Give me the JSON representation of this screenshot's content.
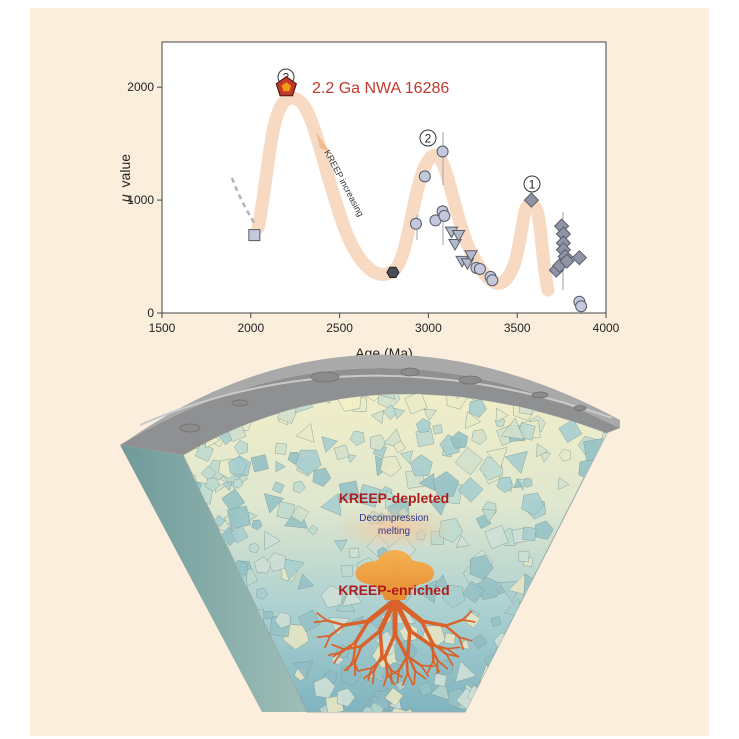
{
  "chart_data": {
    "type": "scatter",
    "xlabel": "Age (Ma)",
    "ylabel_symbol": "μ",
    "ylabel_text": "value",
    "xlim": [
      1500,
      4000
    ],
    "ylim": [
      0,
      2400
    ],
    "xticks": [
      1500,
      2000,
      2500,
      3000,
      3500,
      4000
    ],
    "yticks": [
      0,
      1000,
      2000
    ],
    "grid": false,
    "annotations": {
      "highlight_label": "2.2 Ga NWA 16286",
      "trend_label": "KREEP increasing",
      "stage_labels": [
        "1",
        "2",
        "3"
      ]
    },
    "series": [
      {
        "marker": "pentagon",
        "color": "#c0392b",
        "points": [
          {
            "x": 2200,
            "y": 2000
          }
        ]
      },
      {
        "marker": "square",
        "color": "#c3c8dc",
        "points": [
          {
            "x": 2020,
            "y": 690
          }
        ]
      },
      {
        "marker": "hexagon",
        "color": "#4a4e5a",
        "points": [
          {
            "x": 2800,
            "y": 360
          }
        ]
      },
      {
        "marker": "circle",
        "color": "#c3c8dc",
        "points": [
          {
            "x": 2930,
            "y": 790
          },
          {
            "x": 2980,
            "y": 1210
          },
          {
            "x": 3040,
            "y": 820
          },
          {
            "x": 3080,
            "y": 1430
          },
          {
            "x": 3080,
            "y": 900
          },
          {
            "x": 3090,
            "y": 860
          },
          {
            "x": 3270,
            "y": 400
          },
          {
            "x": 3290,
            "y": 390
          },
          {
            "x": 3350,
            "y": 320
          },
          {
            "x": 3360,
            "y": 290
          },
          {
            "x": 3850,
            "y": 100
          },
          {
            "x": 3860,
            "y": 60
          }
        ]
      },
      {
        "marker": "triangle-down",
        "color": "#b4bacb",
        "points": [
          {
            "x": 3130,
            "y": 730
          },
          {
            "x": 3150,
            "y": 620
          },
          {
            "x": 3170,
            "y": 700
          },
          {
            "x": 3190,
            "y": 470
          },
          {
            "x": 3220,
            "y": 450
          },
          {
            "x": 3240,
            "y": 520
          }
        ]
      },
      {
        "marker": "diamond",
        "color": "#8e93a6",
        "points": [
          {
            "x": 3580,
            "y": 1000
          },
          {
            "x": 3720,
            "y": 380
          },
          {
            "x": 3740,
            "y": 420
          },
          {
            "x": 3750,
            "y": 770
          },
          {
            "x": 3760,
            "y": 700
          },
          {
            "x": 3760,
            "y": 620
          },
          {
            "x": 3760,
            "y": 560
          },
          {
            "x": 3770,
            "y": 500
          },
          {
            "x": 3780,
            "y": 460
          },
          {
            "x": 3850,
            "y": 490
          }
        ]
      }
    ]
  },
  "illustration": {
    "depleted_label": "KREEP-depleted",
    "melting_label_line1": "Decompression",
    "melting_label_line2": "melting",
    "enriched_label": "KREEP-enriched"
  }
}
